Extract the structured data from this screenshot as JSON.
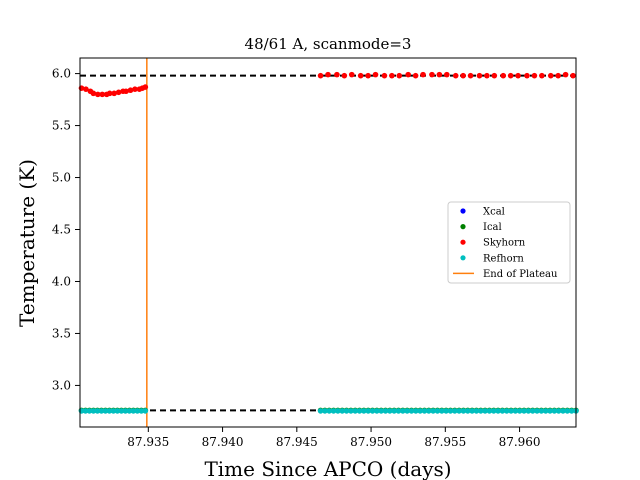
{
  "chart_data": {
    "type": "scatter",
    "title": "48/61 A, scanmode=3",
    "xlabel": "Time Since APCO (days)",
    "ylabel": "Temperature (K)",
    "xlim": [
      87.9304,
      87.9638
    ],
    "ylim": [
      2.6,
      6.15
    ],
    "xticks": [
      87.935,
      87.94,
      87.945,
      87.95,
      87.955,
      87.96
    ],
    "xtick_labels": [
      "87.935",
      "87.940",
      "87.945",
      "87.950",
      "87.955",
      "87.960"
    ],
    "yticks": [
      3.0,
      3.5,
      4.0,
      4.5,
      5.0,
      5.5,
      6.0
    ],
    "ytick_labels": [
      "3.0",
      "3.5",
      "4.0",
      "4.5",
      "5.0",
      "5.5",
      "6.0"
    ],
    "grid": false,
    "legend_position": "center-right",
    "series": [
      {
        "name": "Xcal",
        "color": "#0000ff",
        "marker": "dot",
        "x": [],
        "y": []
      },
      {
        "name": "Ical",
        "color": "#008000",
        "marker": "dot",
        "segments": [
          {
            "x_start": 87.9305,
            "x_end": 87.9348,
            "count": 17,
            "y": 2.76
          },
          {
            "x_start": 87.9466,
            "x_end": 87.9638,
            "count": 60,
            "y": 2.76
          }
        ]
      },
      {
        "name": "Skyhorn",
        "color": "#ff0000",
        "marker": "dot",
        "x": [
          87.9305,
          87.9308,
          87.9311,
          87.9313,
          87.9316,
          87.9319,
          87.9322,
          87.9324,
          87.9327,
          87.933,
          87.9333,
          87.9335,
          87.9338,
          87.9341,
          87.9344,
          87.9346,
          87.9348,
          87.9466,
          87.9471,
          87.9477,
          87.9482,
          87.9487,
          87.9493,
          87.9498,
          87.9503,
          87.9509,
          87.9514,
          87.9519,
          87.9525,
          87.953,
          87.9535,
          87.9541,
          87.9546,
          87.9551,
          87.9557,
          87.9562,
          87.9567,
          87.9573,
          87.9578,
          87.9583,
          87.9589,
          87.9594,
          87.9599,
          87.9605,
          87.961,
          87.9615,
          87.9621,
          87.9626,
          87.9631,
          87.9636
        ],
        "y": [
          5.86,
          5.85,
          5.83,
          5.81,
          5.8,
          5.8,
          5.8,
          5.81,
          5.81,
          5.82,
          5.83,
          5.83,
          5.84,
          5.85,
          5.85,
          5.86,
          5.87,
          5.98,
          5.99,
          5.99,
          5.98,
          5.99,
          5.98,
          5.98,
          5.99,
          5.98,
          5.98,
          5.98,
          5.99,
          5.98,
          5.99,
          5.99,
          5.99,
          5.99,
          5.98,
          5.98,
          5.98,
          5.98,
          5.98,
          5.98,
          5.98,
          5.98,
          5.98,
          5.98,
          5.98,
          5.98,
          5.98,
          5.98,
          5.99,
          5.98
        ]
      },
      {
        "name": "Refhorn",
        "color": "#00bfbf",
        "marker": "dot",
        "segments": [
          {
            "x_start": 87.9305,
            "x_end": 87.9348,
            "count": 17,
            "y": 2.755
          },
          {
            "x_start": 87.9466,
            "x_end": 87.9638,
            "count": 60,
            "y": 2.755
          }
        ]
      },
      {
        "name": "End of Plateau",
        "color": "#ff7f0e",
        "marker": "vline",
        "x": 87.9349
      }
    ],
    "reference_lines": [
      {
        "style": "dashed",
        "color": "#000000",
        "y": 5.98,
        "x_start": 87.9304,
        "x_end": 87.9638
      },
      {
        "style": "dashed",
        "color": "#000000",
        "y": 2.76,
        "x_start": 87.9304,
        "x_end": 87.9638
      }
    ]
  }
}
